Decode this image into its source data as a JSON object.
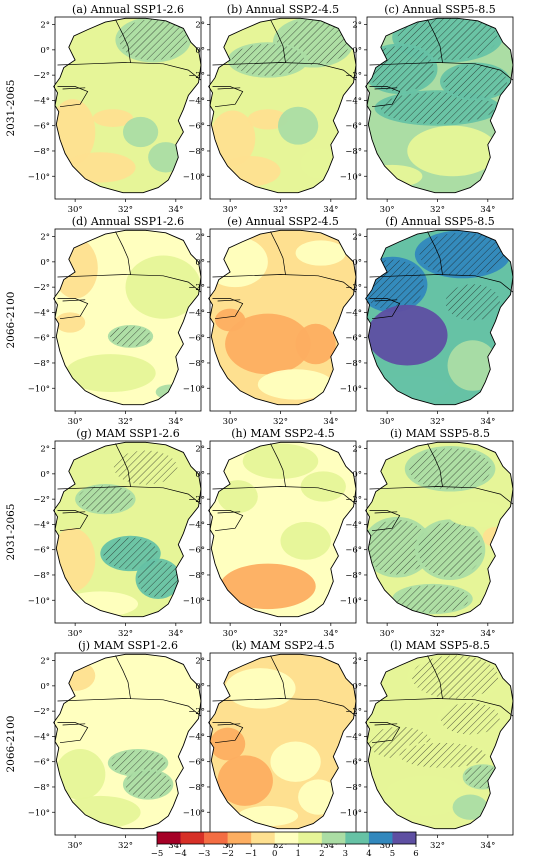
{
  "rows": [
    {
      "period": "2031-2065",
      "panels": [
        {
          "title": "(a) Annual SSP1-2.6",
          "scheme": "a"
        },
        {
          "title": "(b) Annual SSP2-4.5",
          "scheme": "b"
        },
        {
          "title": "(c) Annual SSP5-8.5",
          "scheme": "c"
        }
      ]
    },
    {
      "period": "2066-2100",
      "panels": [
        {
          "title": "(d) Annual SSP1-2.6",
          "scheme": "d"
        },
        {
          "title": "(e) Annual SSP2-4.5",
          "scheme": "e"
        },
        {
          "title": "(f) Annual SSP5-8.5",
          "scheme": "f"
        }
      ]
    },
    {
      "period": "2031-2065",
      "panels": [
        {
          "title": "(g) MAM SSP1-2.6",
          "scheme": "g"
        },
        {
          "title": "(h) MAM SSP2-4.5",
          "scheme": "h"
        },
        {
          "title": "(i) MAM SSP5-8.5",
          "scheme": "i"
        }
      ]
    },
    {
      "period": "2066-2100",
      "panels": [
        {
          "title": "(j) MAM SSP1-2.6",
          "scheme": "j"
        },
        {
          "title": "(k) MAM SSP2-4.5",
          "scheme": "k"
        },
        {
          "title": "(l) MAM SSP5-8.5",
          "scheme": "l"
        }
      ]
    }
  ],
  "y_ticks": [
    "2°",
    "0°",
    "−2°",
    "−4°",
    "−6°",
    "−8°",
    "−10°"
  ],
  "x_ticks": [
    "30°",
    "32°",
    "34°"
  ],
  "colorbar": {
    "ticks": [
      "−5",
      "−4",
      "−3",
      "−2",
      "−1",
      "0",
      "1",
      "2",
      "3",
      "4",
      "5",
      "6"
    ],
    "colors": [
      "#a50026",
      "#d73027",
      "#f46d43",
      "#fdae61",
      "#fee090",
      "#ffffbf",
      "#e6f598",
      "#abdda4",
      "#66c2a5",
      "#3288bd",
      "#5e4fa2"
    ]
  }
}
